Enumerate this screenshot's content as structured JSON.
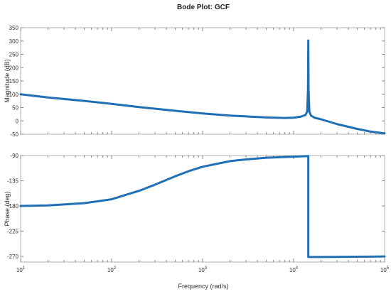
{
  "chart_data": [
    {
      "type": "line",
      "panel": "magnitude",
      "title": "Bode Plot: GCF",
      "ylabel": "Magnitude (dB)",
      "xscale": "log",
      "xlim": [
        10,
        100000
      ],
      "ylim": [
        -50,
        350
      ],
      "yticks": [
        -50,
        0,
        50,
        100,
        150,
        200,
        250,
        300,
        350
      ],
      "grid": false,
      "line_color": "#1f6fb4",
      "x": [
        10,
        20,
        50,
        100,
        200,
        500,
        1000,
        2000,
        5000,
        8000,
        10000,
        12000,
        13500,
        14100,
        14400,
        14500,
        14600,
        14900,
        15500,
        17000,
        20000,
        30000,
        50000,
        70000,
        100000
      ],
      "y": [
        100,
        88,
        75,
        64,
        52,
        38,
        28,
        20,
        13,
        11,
        12,
        16,
        22,
        35,
        120,
        302,
        120,
        35,
        20,
        12,
        6,
        -12,
        -30,
        -40,
        -47
      ]
    },
    {
      "type": "line",
      "panel": "phase",
      "ylabel": "Phase (deg)",
      "xlabel": "Frequency (rad/s)",
      "xscale": "log",
      "xlim": [
        10,
        100000
      ],
      "ylim": [
        -280,
        -90
      ],
      "yticks": [
        -270,
        -225,
        -180,
        -135,
        -90
      ],
      "xticks": [
        10,
        100,
        1000,
        10000,
        100000
      ],
      "xtick_labels": [
        {
          "base": "10",
          "exp": "1"
        },
        {
          "base": "10",
          "exp": "2"
        },
        {
          "base": "10",
          "exp": "3"
        },
        {
          "base": "10",
          "exp": "4"
        },
        {
          "base": "10",
          "exp": "5"
        }
      ],
      "grid": false,
      "line_color": "#1f6fb4",
      "x": [
        10,
        20,
        50,
        100,
        200,
        300,
        500,
        700,
        1000,
        2000,
        3000,
        5000,
        10000,
        14500,
        14500,
        20000,
        50000,
        100000
      ],
      "y": [
        -180,
        -179,
        -175,
        -168,
        -153,
        -142,
        -127,
        -118,
        -110,
        -100,
        -97,
        -94,
        -92,
        -91,
        -271,
        -271,
        -270.5,
        -270
      ]
    }
  ]
}
